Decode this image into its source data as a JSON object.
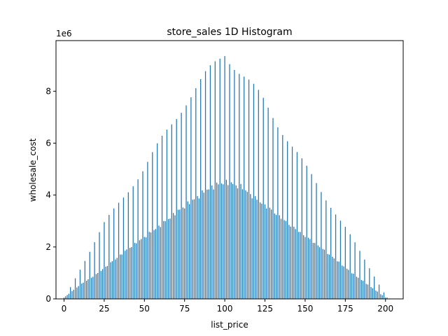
{
  "chart_data": {
    "type": "bar",
    "title": "store_sales 1D Histogram",
    "xlabel": "list_price",
    "ylabel": "wholesale_cost",
    "y_offset_label": "1e6",
    "xlim": [
      -5,
      211
    ],
    "ylim": [
      0,
      9.95
    ],
    "y_unit_multiplier": 1000000,
    "xticks": [
      0,
      25,
      50,
      75,
      100,
      125,
      150,
      175,
      200
    ],
    "yticks": [
      0,
      2,
      4,
      6,
      8
    ],
    "grid": false,
    "legend": "none",
    "bar_color": "#1f77b4",
    "x_range": [
      0,
      201
    ],
    "triangle_peak": 100.5,
    "body_profile": {
      "x": [
        0,
        10,
        20,
        30,
        40,
        50,
        60,
        70,
        80,
        90,
        100,
        110,
        120,
        130,
        140,
        150,
        160,
        170,
        180,
        190,
        200
      ],
      "y": [
        0.05,
        0.55,
        0.95,
        1.45,
        1.95,
        2.4,
        2.85,
        3.35,
        3.8,
        4.25,
        4.5,
        4.3,
        3.8,
        3.35,
        2.85,
        2.4,
        1.95,
        1.45,
        0.95,
        0.5,
        0.05
      ]
    },
    "spikes": {
      "period": 3,
      "start": 1,
      "envelope": {
        "x": [
          1,
          25,
          50,
          75,
          100,
          125,
          150,
          175,
          200
        ],
        "y": [
          0.1,
          2.9,
          5.05,
          7.55,
          9.5,
          7.55,
          5.1,
          2.75,
          0.15
        ]
      }
    }
  }
}
